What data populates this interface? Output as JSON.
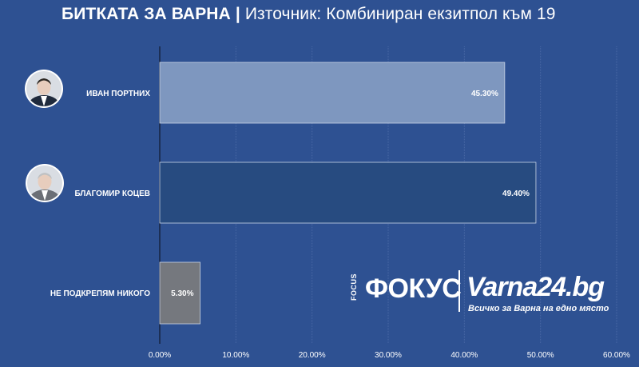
{
  "header": {
    "title_bold": "БИТКАТА ЗА ВАРНА",
    "separator": "|",
    "title_rest": "Източник: Комбиниран екзитпол към 19"
  },
  "chart_data": {
    "type": "bar",
    "orientation": "horizontal",
    "categories": [
      "ИВАН ПОРТНИХ",
      "БЛАГОМИР КОЦЕВ",
      "НЕ ПОДКРЕПЯМ НИКОГО"
    ],
    "values": [
      45.3,
      49.4,
      5.3
    ],
    "value_labels": [
      "45.30%",
      "49.40%",
      "5.30%"
    ],
    "bar_colors": [
      "#7e97bf",
      "#274b80",
      "#75787e"
    ],
    "xlim": [
      0,
      60
    ],
    "xticks": [
      0,
      10,
      20,
      30,
      40,
      50,
      60
    ],
    "xtick_labels": [
      "0.00%",
      "10.00%",
      "20.00%",
      "30.00%",
      "40.00%",
      "50.00%",
      "60.00%"
    ],
    "grid": true
  },
  "logo": {
    "focus_small": "FOCUS",
    "focus_big": "ФОКУС",
    "varna_big": "Varna24.bg",
    "varna_tagline": "Всичко за Варна на едно място"
  },
  "avatars": [
    "person-photo-portnih",
    "person-photo-kotsev"
  ]
}
